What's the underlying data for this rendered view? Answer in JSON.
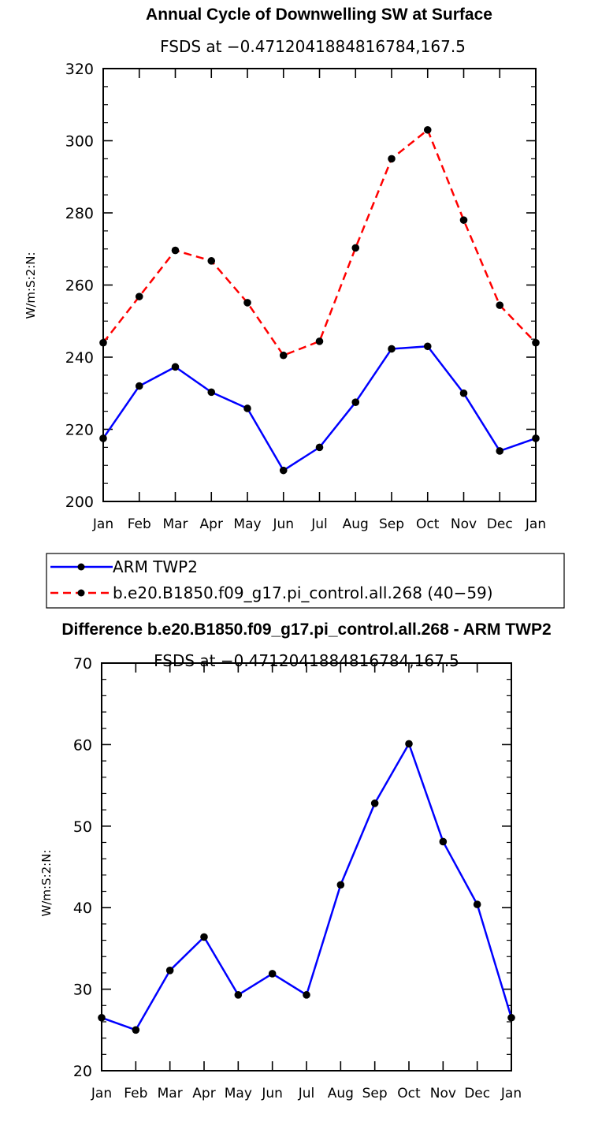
{
  "chart_data": [
    {
      "type": "line",
      "title": "Annual Cycle of Downwelling SW at Surface",
      "subtitle": "FSDS at −0.4712041884816784,167.5",
      "xlabel": "",
      "ylabel": "W/m:S:2:N:",
      "categories": [
        "Jan",
        "Feb",
        "Mar",
        "Apr",
        "May",
        "Jun",
        "Jul",
        "Aug",
        "Sep",
        "Oct",
        "Nov",
        "Dec",
        "Jan"
      ],
      "ylim": [
        200,
        320
      ],
      "yticks": [
        200,
        220,
        240,
        260,
        280,
        300,
        320
      ],
      "series": [
        {
          "name": "ARM TWP2",
          "color": "#0000ff",
          "dash": "solid",
          "values": [
            217.5,
            232,
            237.3,
            230.3,
            225.8,
            208.6,
            215,
            227.5,
            242.3,
            243,
            230,
            214,
            217.5
          ]
        },
        {
          "name": "b.e20.B1850.f09_g17.pi_control.all.268 (40−59)",
          "color": "#ff0000",
          "dash": "dashed",
          "values": [
            244,
            256.8,
            269.6,
            266.7,
            255.1,
            240.5,
            244.4,
            270.3,
            295,
            303,
            278,
            254.4,
            244
          ]
        }
      ],
      "legend": [
        "ARM TWP2",
        "b.e20.B1850.f09_g17.pi_control.all.268 (40−59)"
      ]
    },
    {
      "type": "line",
      "title": "Difference b.e20.B1850.f09_g17.pi_control.all.268 - ARM TWP2",
      "subtitle": "FSDS at −0.4712041884816784,167.5",
      "xlabel": "",
      "ylabel": "W/m:S:2:N:",
      "categories": [
        "Jan",
        "Feb",
        "Mar",
        "Apr",
        "May",
        "Jun",
        "Jul",
        "Aug",
        "Sep",
        "Oct",
        "Nov",
        "Dec",
        "Jan"
      ],
      "ylim": [
        20,
        70
      ],
      "yticks": [
        20,
        30,
        40,
        50,
        60,
        70
      ],
      "series": [
        {
          "name": "Difference",
          "color": "#0000ff",
          "dash": "solid",
          "values": [
            26.5,
            25,
            32.3,
            36.4,
            29.3,
            31.9,
            29.3,
            42.8,
            52.8,
            60.1,
            48.1,
            40.4,
            26.5
          ]
        }
      ]
    }
  ]
}
